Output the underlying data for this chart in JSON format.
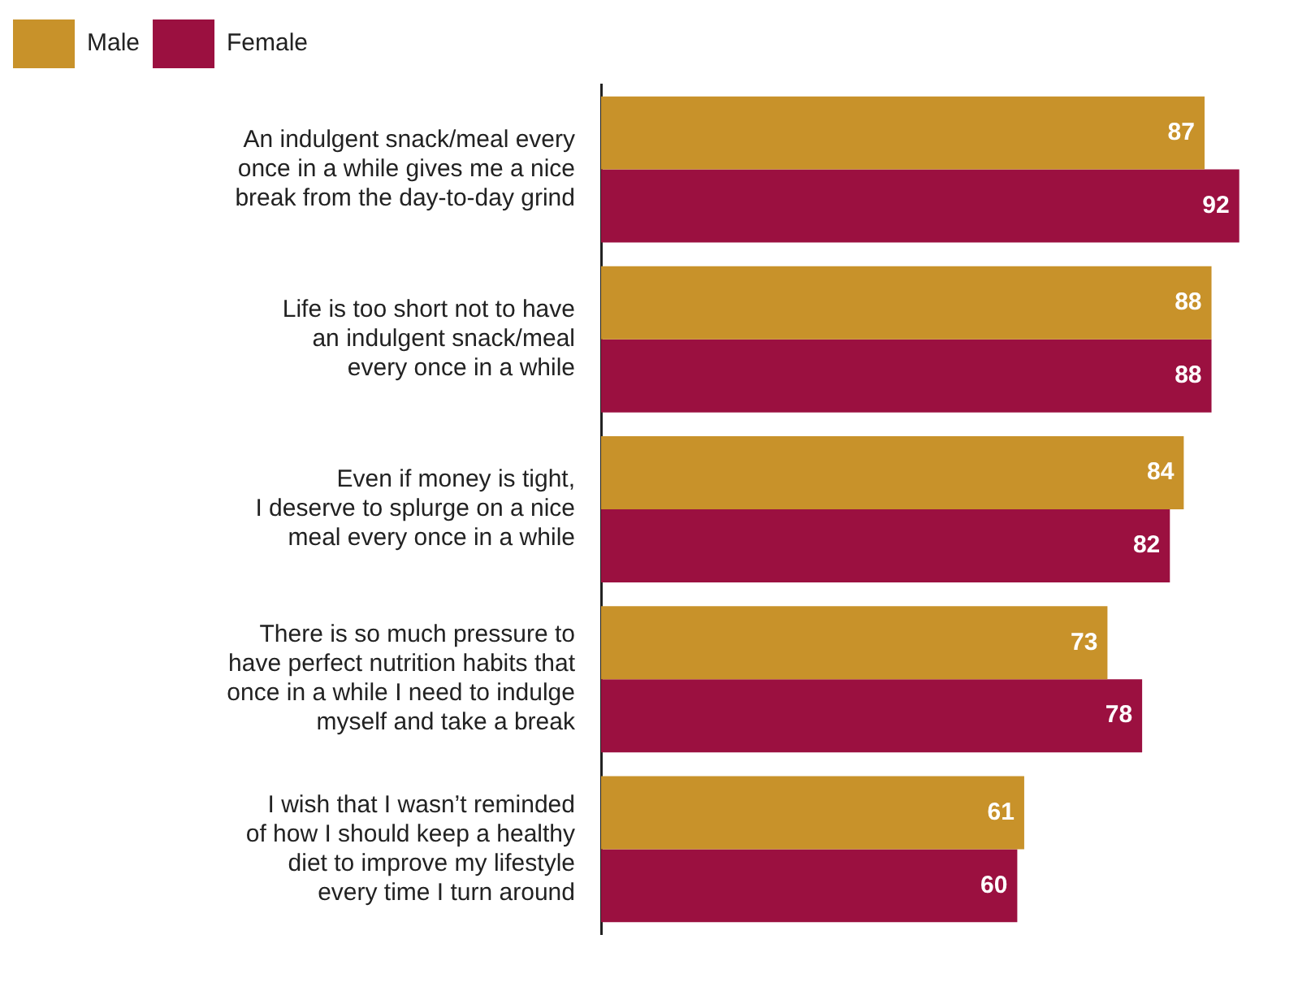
{
  "chart_data": {
    "type": "bar",
    "orientation": "horizontal",
    "categories": [
      "An indulgent snack/meal every\nonce in a while gives me a nice\nbreak from the day-to-day grind",
      "Life is too short not to have\nan indulgent snack/meal\nevery once in a while",
      "Even if money is tight,\nI deserve to splurge on a nice\nmeal every once in a while",
      "There is so much pressure to\nhave perfect nutrition habits that\nonce in a while I need to indulge\nmyself and take a break",
      "I wish that I wasn’t reminded\nof how I should keep a healthy\ndiet to improve my lifestyle\nevery time I turn around"
    ],
    "series": [
      {
        "name": "Male",
        "color": "#c8922a",
        "values": [
          87,
          88,
          84,
          73,
          61
        ]
      },
      {
        "name": "Female",
        "color": "#9b1040",
        "values": [
          92,
          88,
          82,
          78,
          60
        ]
      }
    ],
    "tick_labels": "y",
    "data_labels": true,
    "legend": "top left"
  }
}
